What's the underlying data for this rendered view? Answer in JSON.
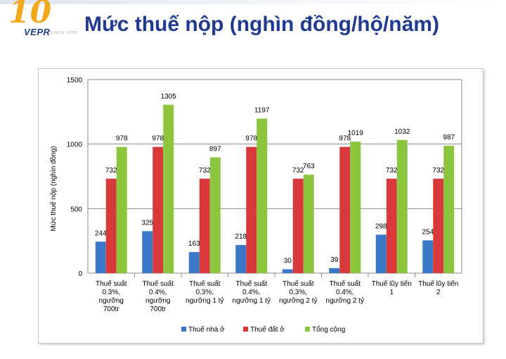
{
  "slide": {
    "title": "Mức thuế nộp (nghìn đồng/hộ/năm)"
  },
  "logo": {
    "number": "10",
    "name": "VEPR",
    "tagline": "SINCE 2008"
  },
  "colors": {
    "title": "#1f3a8f",
    "series_house": "#3c78c8",
    "series_land": "#d83a3c",
    "series_total": "#8cc63e"
  },
  "chart_data": {
    "type": "bar",
    "ylabel": "Mức thuế nộp (nghìn đồng)",
    "xlabel": "",
    "ylim": [
      0,
      1500
    ],
    "yticks": [
      0,
      500,
      1000,
      1500
    ],
    "grid": true,
    "legend_position": "bottom",
    "categories": [
      [
        "Thuế suất",
        "0.3%,",
        "ngưỡng",
        "700tr"
      ],
      [
        "Thuế suất",
        "0.4%,",
        "ngưỡng",
        "700tr"
      ],
      [
        "Thuế suất",
        "0.3%,",
        "ngưỡng 1 tỷ"
      ],
      [
        "Thuế suất",
        "0.4%,",
        "ngưỡng 1 tỷ"
      ],
      [
        "Thuế suất",
        "0.3%,",
        "ngưỡng 2 tỷ"
      ],
      [
        "Thuế suất",
        "0.4%,",
        "ngưỡng 2 tỷ"
      ],
      [
        "Thuế lũy tiến",
        "1"
      ],
      [
        "Thuế lũy tiến",
        "2"
      ]
    ],
    "series": [
      {
        "name": "Thuế nhà ở",
        "color": "#3c78c8",
        "values": [
          244,
          325,
          163,
          218,
          30,
          39,
          298,
          254
        ]
      },
      {
        "name": "Thuế đất ở",
        "color": "#d83a3c",
        "values": [
          732,
          978,
          732,
          978,
          732,
          978,
          732,
          732
        ]
      },
      {
        "name": "Tổng cộng",
        "color": "#8cc63e",
        "values": [
          978,
          1305,
          897,
          1197,
          763,
          1019,
          1032,
          987
        ]
      }
    ]
  }
}
